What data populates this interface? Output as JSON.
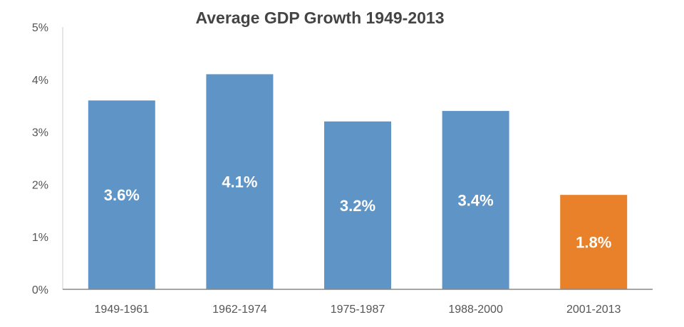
{
  "chart_data": {
    "type": "bar",
    "title": "Average GDP Growth 1949-2013",
    "xlabel": "",
    "ylabel": "",
    "categories": [
      "1949-1961",
      "1962-1974",
      "1975-1987",
      "1988-2000",
      "2001-2013"
    ],
    "values": [
      3.6,
      4.1,
      3.2,
      3.4,
      1.8
    ],
    "data_labels": [
      "3.6%",
      "4.1%",
      "3.2%",
      "3.4%",
      "1.8%"
    ],
    "ylim": [
      0,
      5
    ],
    "yticks": [
      0,
      1,
      2,
      3,
      4,
      5
    ],
    "ytick_labels": [
      "0%",
      "1%",
      "2%",
      "3%",
      "4%",
      "5%"
    ],
    "grid": false,
    "colors": [
      "#5f94c7",
      "#5f94c7",
      "#5f94c7",
      "#5f94c7",
      "#e8812a"
    ]
  }
}
